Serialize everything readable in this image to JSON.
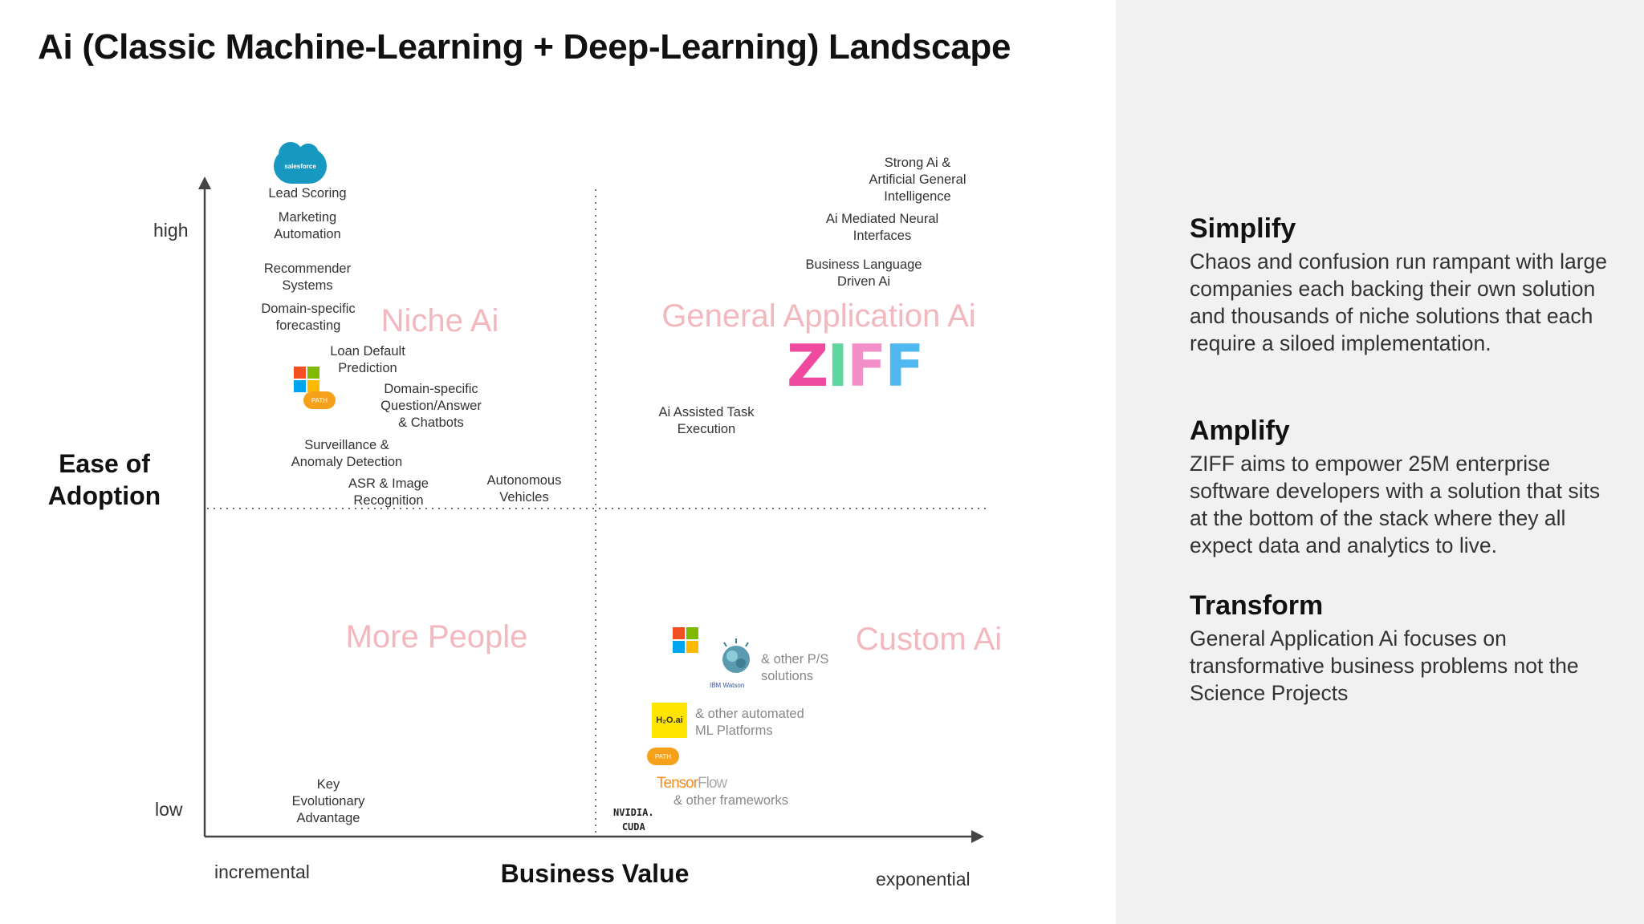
{
  "title": "Ai (Classic Machine-Learning + Deep-Learning) Landscape",
  "axes": {
    "y_title": "Ease of\nAdoption",
    "x_title": "Business Value",
    "y_high": "high",
    "y_low": "low",
    "x_low": "incremental",
    "x_high": "exponential"
  },
  "quadrants": {
    "top_left": "Niche Ai",
    "top_right": "General Application Ai",
    "bottom_left": "More People",
    "bottom_right": "Custom Ai"
  },
  "labels": {
    "lead_scoring": "Lead Scoring",
    "marketing_automation": "Marketing\nAutomation",
    "recommender_systems": "Recommender\nSystems",
    "domain_forecasting": "Domain-specific\nforecasting",
    "loan_default": "Loan Default\nPrediction",
    "domain_qa": "Domain-specific\nQuestion/Answer\n& Chatbots",
    "surveillance": "Surveillance &\nAnomaly Detection",
    "asr_image": "ASR & Image\nRecognition",
    "autonomous": "Autonomous\nVehicles",
    "strong_ai": "Strong Ai &\nArtificial General\nIntelligence",
    "neural_interfaces": "Ai Mediated Neural\nInterfaces",
    "business_language": "Business Language\nDriven Ai",
    "assisted_task": "Ai Assisted Task\nExecution",
    "key_evolutionary": "Key\nEvolutionary\nAdvantage",
    "other_ps": "& other P/S\nsolutions",
    "other_ml": "& other automated\nML Platforms",
    "other_frameworks": "& other frameworks"
  },
  "logos": {
    "salesforce": "salesforce",
    "ziff": [
      "Z",
      "I",
      "F",
      "F"
    ],
    "h2o": "H₂O.ai",
    "tensorflow": [
      "Tensor",
      "Flow"
    ],
    "nvidia": "NVIDIA.\nCUDA",
    "watson": "IBM Watson",
    "cloud_badge": "PATH"
  },
  "colors": {
    "quadrant_label": "#f2b8bd",
    "ms_red": "#f25022",
    "ms_green": "#7fba00",
    "ms_blue": "#00a4ef",
    "ms_yellow": "#ffb900"
  },
  "sections": [
    {
      "title": "Simplify",
      "body": "Chaos and confusion run rampant with large companies each backing their own solution and thousands of niche solutions that each require a siloed implementation."
    },
    {
      "title": "Amplify",
      "body": "ZIFF aims to empower 25M enterprise software developers with a solution that sits at the bottom of the stack where they all expect data and analytics to live."
    },
    {
      "title": "Transform",
      "body": "General Application Ai focuses on transformative business problems not the Science Projects"
    }
  ]
}
